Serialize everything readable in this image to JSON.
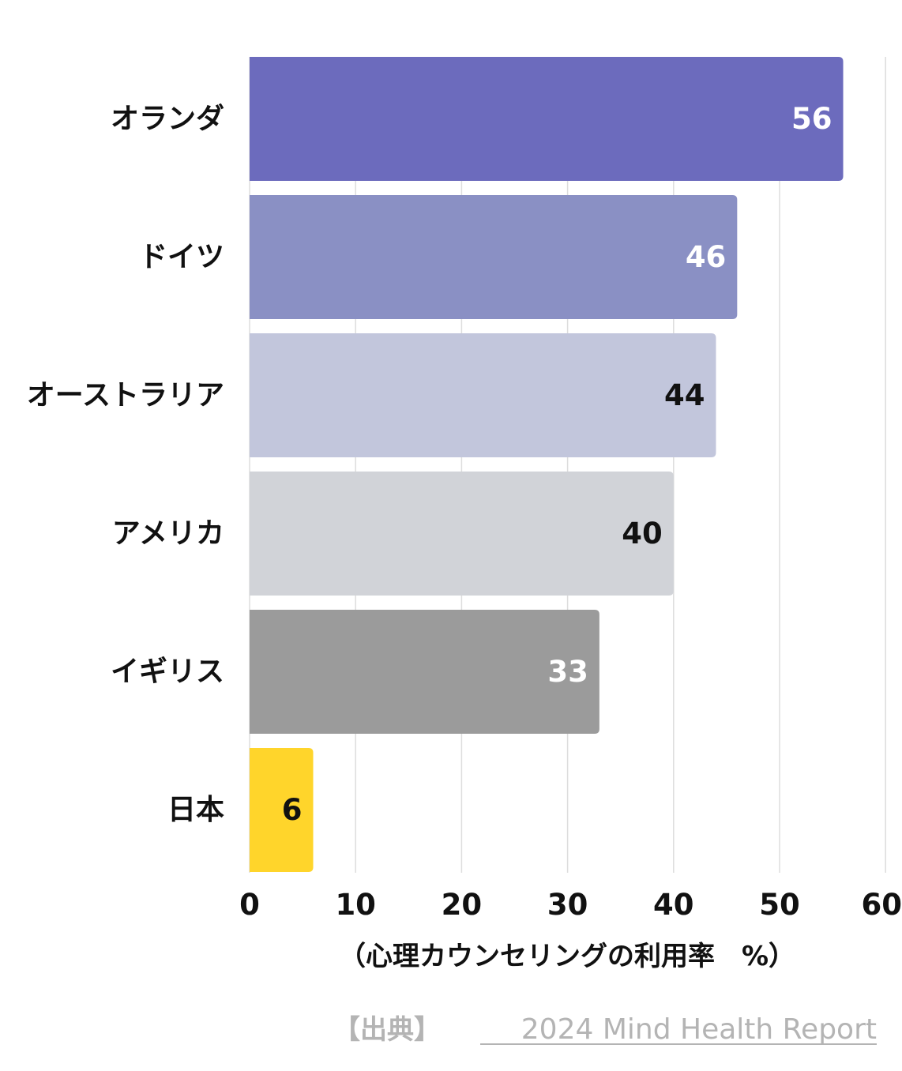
{
  "chart_data": {
    "type": "bar",
    "orientation": "horizontal",
    "categories": [
      "オランダ",
      "ドイツ",
      "オーストラリア",
      "アメリカ",
      "イギリス",
      "日本"
    ],
    "values": [
      56,
      46,
      44,
      40,
      33,
      6
    ],
    "bar_colors": [
      "#6c6bbd",
      "#8a90c4",
      "#c2c6dc",
      "#d1d3d8",
      "#9b9b9b",
      "#ffd52b"
    ],
    "value_label_colors": [
      "#ffffff",
      "#ffffff",
      "#111111",
      "#111111",
      "#ffffff",
      "#111111"
    ],
    "xlim": [
      0,
      60
    ],
    "xticks": [
      0,
      10,
      20,
      30,
      40,
      50,
      60
    ],
    "xlabel": "（心理カウンセリングの利用率　%）",
    "grid": true,
    "grid_color": "#dddddd"
  },
  "source": {
    "prefix": "【出典】",
    "link_text": "2024 Mind Health Report",
    "color": "#b4b4b4"
  }
}
